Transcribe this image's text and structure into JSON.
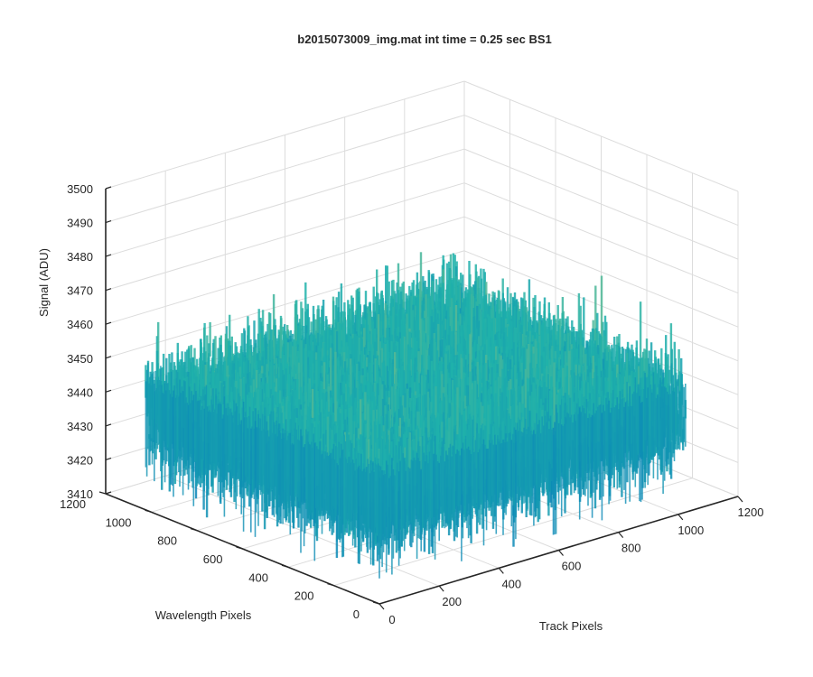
{
  "chart_data": {
    "type": "surface",
    "title": "b2015073009_img.mat int time = 0.25 sec   BS1",
    "xlabel": "Track Pixels",
    "ylabel": "Wavelength Pixels",
    "zlabel": "Signal (ADU)",
    "xlim": [
      0,
      1200
    ],
    "ylim": [
      0,
      1200
    ],
    "zlim": [
      3410,
      3500
    ],
    "x_ticks": [
      "0",
      "200",
      "400",
      "600",
      "800",
      "1000",
      "1200"
    ],
    "y_ticks": [
      "0",
      "200",
      "400",
      "600",
      "800",
      "1000",
      "1200"
    ],
    "z_ticks": [
      "3410",
      "3420",
      "3430",
      "3440",
      "3450",
      "3460",
      "3470",
      "3480",
      "3490",
      "3500"
    ],
    "grid": true,
    "colormap": "parula",
    "surface": {
      "x_range": [
        0,
        1024
      ],
      "y_range": [
        0,
        1024
      ],
      "signal_mean": 3440,
      "signal_min": 3415,
      "signal_max": 3480
    },
    "colors": {
      "low": "#0072bd",
      "mid": "#20b2aa",
      "high": "#eac85a",
      "axis": "#262626",
      "grid": "#dcdcdc"
    }
  }
}
